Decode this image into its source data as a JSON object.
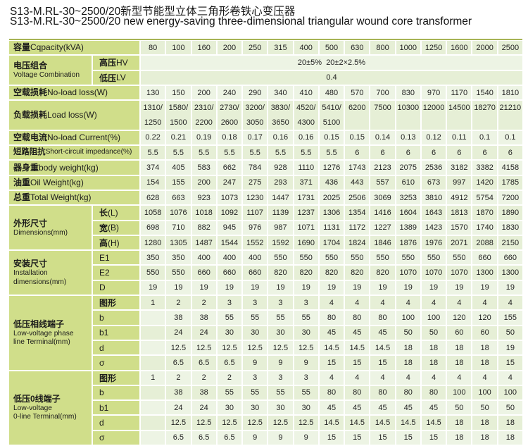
{
  "colors": {
    "label_bg": "#d0de8a",
    "cell_a": "#e6efd6",
    "cell_b": "#edf4e4",
    "border_top": "#a7b355"
  },
  "titles": {
    "zh": "S13-M.RL-30~2500/20新型节能型立体三角形卷铁心变压器",
    "en": "S13-M.RL-30~2500/20 new energy-saving three-dimensional triangular wound core transformer"
  },
  "table": {
    "rows": [
      {
        "kind": "simple",
        "label": "容量Cqpacity(kVA)",
        "values": [
          "80",
          "100",
          "160",
          "200",
          "250",
          "315",
          "400",
          "500",
          "630",
          "800",
          "1000",
          "1250",
          "1600",
          "2000",
          "2500"
        ]
      },
      {
        "kind": "group",
        "zh": "电压组合",
        "en": "Voltage Combination",
        "subs": [
          {
            "name": "高压HV",
            "merged": "20±5%  20±2×2.5%"
          },
          {
            "name": "低压LV",
            "merged": "0.4"
          }
        ]
      },
      {
        "kind": "simple",
        "label": "空载损耗No-load loss(W)",
        "values": [
          "130",
          "150",
          "200",
          "240",
          "290",
          "340",
          "410",
          "480",
          "570",
          "700",
          "830",
          "970",
          "1170",
          "1540",
          "1810"
        ]
      },
      {
        "kind": "tall",
        "label": "负载损耗Load loss(W)",
        "values": [
          [
            "1310/",
            "1250"
          ],
          [
            "1580/",
            "1500"
          ],
          [
            "2310/",
            "2200"
          ],
          [
            "2730/",
            "2600"
          ],
          [
            "3200/",
            "3050"
          ],
          [
            "3830/",
            "3650"
          ],
          [
            "4520/",
            "4300"
          ],
          [
            "5410/",
            "5100"
          ],
          [
            "6200"
          ],
          [
            "7500"
          ],
          [
            "10300"
          ],
          [
            "12000"
          ],
          [
            "14500"
          ],
          [
            "18270"
          ],
          [
            "21210"
          ]
        ]
      },
      {
        "kind": "simple",
        "label": "空载电流No-load Current(%)",
        "values": [
          "0.22",
          "0.21",
          "0.19",
          "0.18",
          "0.17",
          "0.16",
          "0.16",
          "0.15",
          "0.15",
          "0.14",
          "0.13",
          "0.12",
          "0.11",
          "0.1",
          "0.1"
        ]
      },
      {
        "kind": "simple",
        "small": true,
        "label": "短路阻抗Short-circuit impedance(%)",
        "values": [
          "5.5",
          "5.5",
          "5.5",
          "5.5",
          "5.5",
          "5.5",
          "5.5",
          "5.5",
          "6",
          "6",
          "6",
          "6",
          "6",
          "6",
          "6"
        ]
      },
      {
        "kind": "simple",
        "label": "器身重body weight(kg)",
        "values": [
          "374",
          "405",
          "583",
          "662",
          "784",
          "928",
          "1110",
          "1276",
          "1743",
          "2123",
          "2075",
          "2536",
          "3182",
          "3382",
          "4158"
        ]
      },
      {
        "kind": "simple",
        "label": "油重Oil Weight(kg)",
        "values": [
          "154",
          "155",
          "200",
          "247",
          "275",
          "293",
          "371",
          "436",
          "443",
          "557",
          "610",
          "673",
          "997",
          "1420",
          "1785"
        ]
      },
      {
        "kind": "simple",
        "label": "总重Total Weight(kg)",
        "values": [
          "628",
          "663",
          "923",
          "1073",
          "1230",
          "1447",
          "1731",
          "2025",
          "2506",
          "3069",
          "3253",
          "3810",
          "4912",
          "5754",
          "7200"
        ]
      },
      {
        "kind": "group",
        "zh": "外形尺寸",
        "en": "Dimensions(mm)",
        "subs": [
          {
            "name": "长(L)",
            "values": [
              "1058",
              "1076",
              "1018",
              "1092",
              "1107",
              "1139",
              "1237",
              "1306",
              "1354",
              "1416",
              "1604",
              "1643",
              "1813",
              "1870",
              "1890"
            ]
          },
          {
            "name": "宽(B)",
            "values": [
              "698",
              "710",
              "882",
              "945",
              "976",
              "987",
              "1071",
              "1131",
              "1172",
              "1227",
              "1389",
              "1423",
              "1570",
              "1740",
              "1830"
            ]
          },
          {
            "name": "高(H)",
            "values": [
              "1280",
              "1305",
              "1487",
              "1544",
              "1552",
              "1592",
              "1690",
              "1704",
              "1824",
              "1846",
              "1876",
              "1976",
              "2071",
              "2088",
              "2150"
            ]
          }
        ]
      },
      {
        "kind": "group",
        "zh": "安装尺寸",
        "en": "Installation\ndimensions(mm)",
        "subs": [
          {
            "name": "E1",
            "values": [
              "350",
              "350",
              "400",
              "400",
              "400",
              "550",
              "550",
              "550",
              "550",
              "550",
              "550",
              "550",
              "550",
              "660",
              "660"
            ]
          },
          {
            "name": "E2",
            "values": [
              "550",
              "550",
              "660",
              "660",
              "660",
              "820",
              "820",
              "820",
              "820",
              "820",
              "1070",
              "1070",
              "1070",
              "1300",
              "1300"
            ]
          },
          {
            "name": "D",
            "values": [
              "19",
              "19",
              "19",
              "19",
              "19",
              "19",
              "19",
              "19",
              "19",
              "19",
              "19",
              "19",
              "19",
              "19",
              "19"
            ]
          }
        ]
      },
      {
        "kind": "group",
        "zh": "低压相线端子",
        "en": "Low-voltage phase\nline Terminal(mm)",
        "subs": [
          {
            "name": "图形",
            "values": [
              "1",
              "2",
              "2",
              "3",
              "3",
              "3",
              "3",
              "4",
              "4",
              "4",
              "4",
              "4",
              "4",
              "4",
              "4"
            ]
          },
          {
            "name": "b",
            "values": [
              "",
              "38",
              "38",
              "55",
              "55",
              "55",
              "55",
              "80",
              "80",
              "80",
              "100",
              "100",
              "120",
              "120",
              "155"
            ]
          },
          {
            "name": "b1",
            "values": [
              "",
              "24",
              "24",
              "30",
              "30",
              "30",
              "30",
              "45",
              "45",
              "45",
              "50",
              "50",
              "60",
              "60",
              "50"
            ]
          },
          {
            "name": "d",
            "values": [
              "",
              "12.5",
              "12.5",
              "12.5",
              "12.5",
              "12.5",
              "12.5",
              "14.5",
              "14.5",
              "14.5",
              "18",
              "18",
              "18",
              "18",
              "19"
            ]
          },
          {
            "name": "σ",
            "values": [
              "",
              "6.5",
              "6.5",
              "6.5",
              "9",
              "9",
              "9",
              "15",
              "15",
              "15",
              "18",
              "18",
              "18",
              "18",
              "15"
            ]
          }
        ]
      },
      {
        "kind": "group",
        "zh": "低压0线端子",
        "en": "Low-voltage\n0-line Terminal(mm)",
        "subs": [
          {
            "name": "图形",
            "values": [
              "1",
              "2",
              "2",
              "2",
              "3",
              "3",
              "3",
              "4",
              "4",
              "4",
              "4",
              "4",
              "4",
              "4",
              "4"
            ]
          },
          {
            "name": "b",
            "values": [
              "",
              "38",
              "38",
              "55",
              "55",
              "55",
              "55",
              "80",
              "80",
              "80",
              "80",
              "80",
              "100",
              "100",
              "100"
            ]
          },
          {
            "name": "b1",
            "values": [
              "",
              "24",
              "24",
              "30",
              "30",
              "30",
              "30",
              "45",
              "45",
              "45",
              "45",
              "45",
              "50",
              "50",
              "50"
            ]
          },
          {
            "name": "d",
            "values": [
              "",
              "12.5",
              "12.5",
              "12.5",
              "12.5",
              "12.5",
              "12.5",
              "14.5",
              "14.5",
              "14.5",
              "14.5",
              "14.5",
              "18",
              "18",
              "18"
            ]
          },
          {
            "name": "σ",
            "values": [
              "",
              "6.5",
              "6.5",
              "6.5",
              "9",
              "9",
              "9",
              "15",
              "15",
              "15",
              "15",
              "15",
              "18",
              "18",
              "18"
            ]
          }
        ]
      }
    ]
  }
}
